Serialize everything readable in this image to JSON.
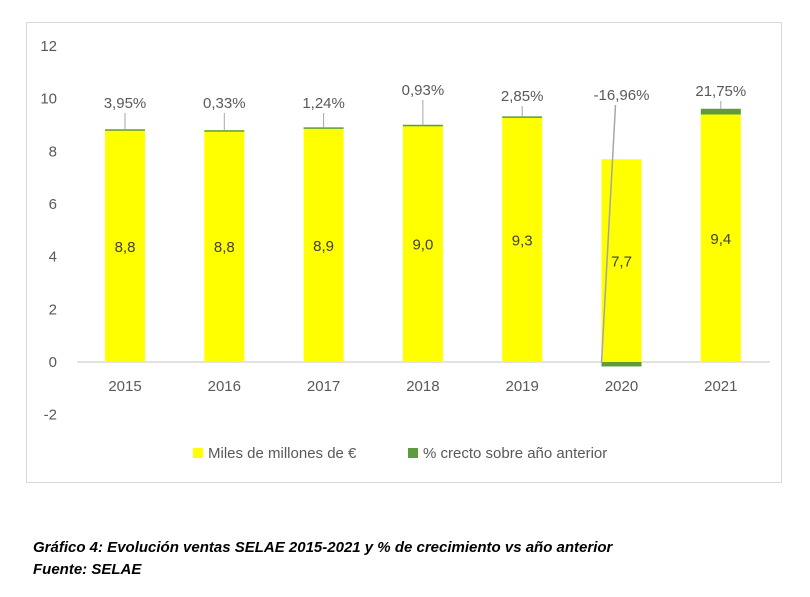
{
  "chart_data": {
    "type": "bar",
    "stacked": true,
    "categories": [
      "2015",
      "2016",
      "2017",
      "2018",
      "2019",
      "2020",
      "2021"
    ],
    "series": [
      {
        "name": "Miles de millones de €",
        "color": "#ffff00",
        "values": [
          8.8,
          8.8,
          8.9,
          9.0,
          9.3,
          7.7,
          9.4
        ],
        "labels": [
          "8,8",
          "8,8",
          "8,9",
          "9,0",
          "9,3",
          "7,7",
          "9,4"
        ]
      },
      {
        "name": "% crecto sobre año anterior",
        "color": "#5e9b3e",
        "values": [
          0.0395,
          0.0033,
          0.0124,
          0.0093,
          0.0285,
          -0.1696,
          0.2175
        ],
        "labels": [
          "3,95%",
          "0,33%",
          "1,24%",
          "0,93%",
          "2,85%",
          "-16,96%",
          "21,75%"
        ]
      }
    ],
    "yticks": [
      "12",
      "10",
      "8",
      "6",
      "4",
      "2",
      "0",
      "-2"
    ],
    "ylim": [
      -2,
      12
    ],
    "legend_position": "bottom",
    "grid": false
  },
  "caption": {
    "line1": "Gráfico 4: Evolución ventas SELAE 2015-2021 y % de crecimiento vs año anterior",
    "line2": "Fuente: SELAE"
  }
}
